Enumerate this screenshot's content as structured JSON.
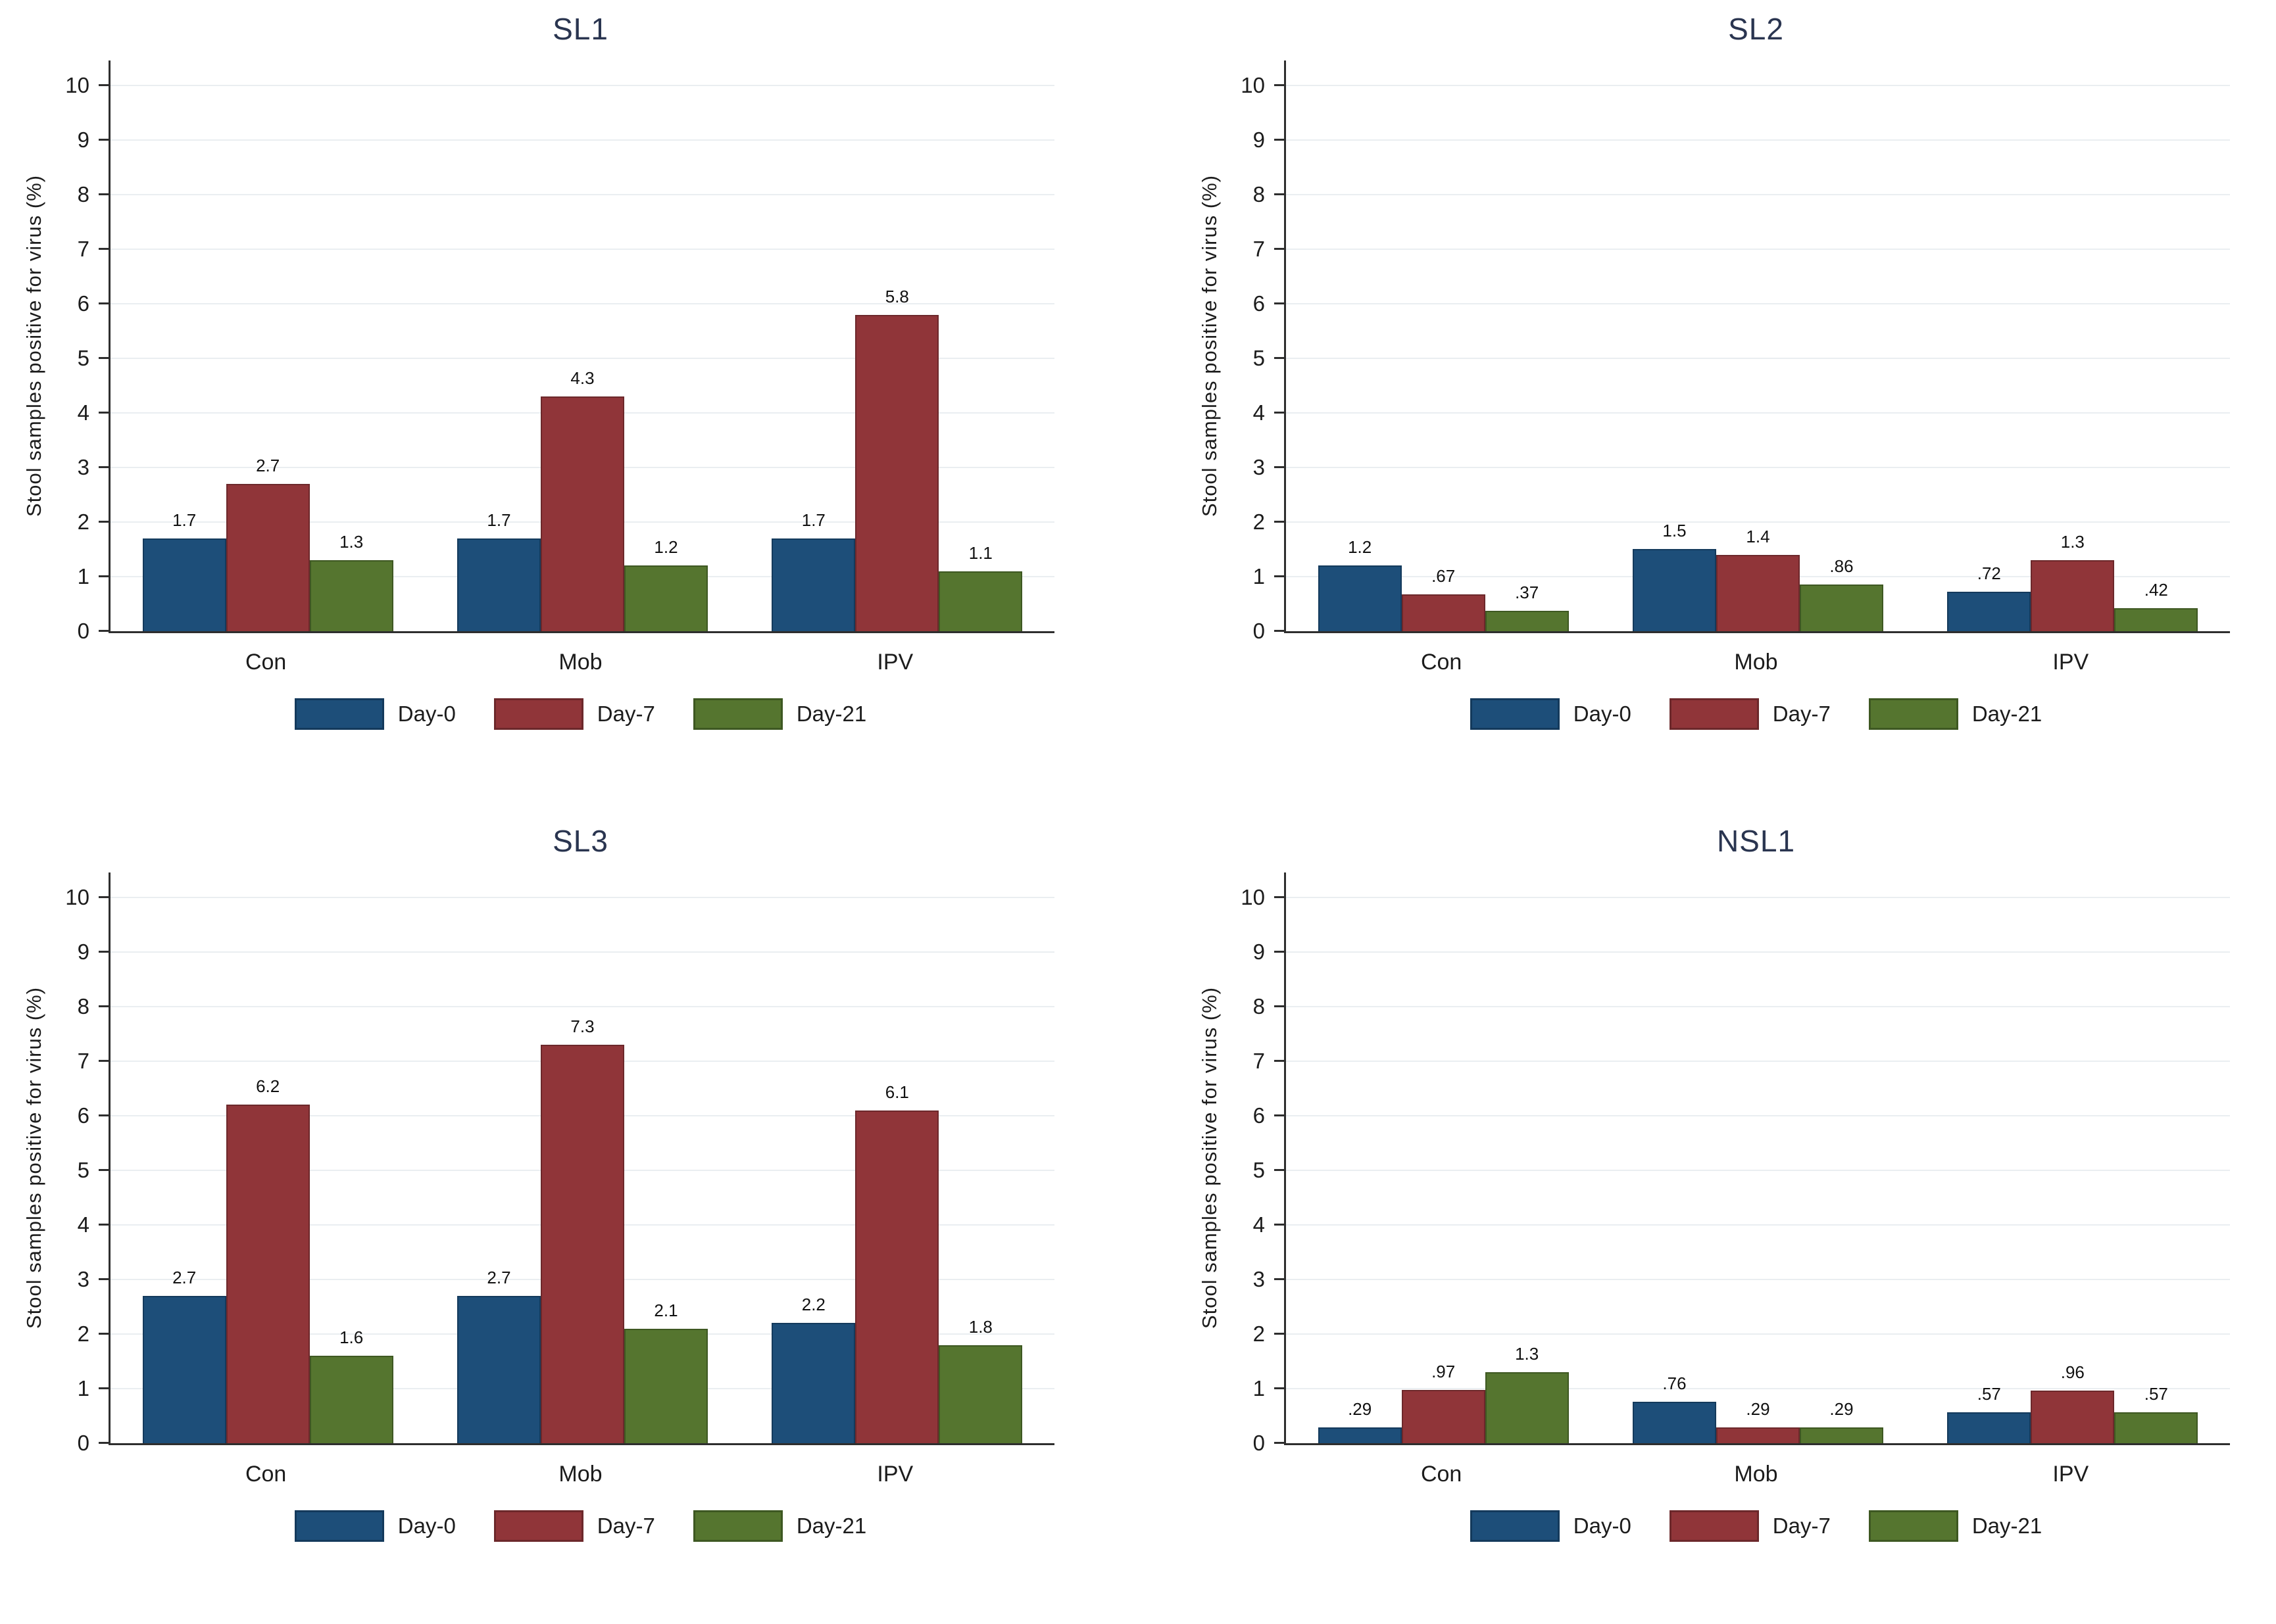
{
  "figure": {
    "background": "#ffffff",
    "title_color": "#2a3550",
    "axis_line_color": "#2e2e2e",
    "gridline_color": "#eaeef1",
    "text_color": "#1c1c1c"
  },
  "axis": {
    "ylabel": "Stool samples positive for virus (%)",
    "yticks": [
      "0",
      "1",
      "2",
      "3",
      "4",
      "5",
      "6",
      "7",
      "8",
      "9",
      "10"
    ],
    "categories": [
      "Con",
      "Mob",
      "IPV"
    ]
  },
  "legend": {
    "items": [
      {
        "label": "Day-0",
        "color": "#1d4e79",
        "border": "#143a5c"
      },
      {
        "label": "Day-7",
        "color": "#903539",
        "border": "#6c282b"
      },
      {
        "label": "Day-21",
        "color": "#55752f",
        "border": "#3e5822"
      }
    ]
  },
  "chart_data": [
    {
      "type": "bar",
      "title": "SL1",
      "categories": [
        "Con",
        "Mob",
        "IPV"
      ],
      "xlabel": "",
      "ylabel": "Stool samples positive for virus (%)",
      "ylim": [
        0,
        10
      ],
      "grid": true,
      "legend_position": "bottom",
      "series": [
        {
          "name": "Day-0",
          "values": [
            1.7,
            1.7,
            1.7
          ],
          "labels": [
            "1.7",
            "1.7",
            "1.7"
          ]
        },
        {
          "name": "Day-7",
          "values": [
            2.7,
            4.3,
            5.8
          ],
          "labels": [
            "2.7",
            "4.3",
            "5.8"
          ]
        },
        {
          "name": "Day-21",
          "values": [
            1.3,
            1.2,
            1.1
          ],
          "labels": [
            "1.3",
            "1.2",
            "1.1"
          ]
        }
      ]
    },
    {
      "type": "bar",
      "title": "SL2",
      "categories": [
        "Con",
        "Mob",
        "IPV"
      ],
      "xlabel": "",
      "ylabel": "Stool samples positive for virus (%)",
      "ylim": [
        0,
        10
      ],
      "grid": true,
      "legend_position": "bottom",
      "series": [
        {
          "name": "Day-0",
          "values": [
            1.2,
            1.5,
            0.72
          ],
          "labels": [
            "1.2",
            "1.5",
            ".72"
          ]
        },
        {
          "name": "Day-7",
          "values": [
            0.67,
            1.4,
            1.3
          ],
          "labels": [
            ".67",
            "1.4",
            "1.3"
          ]
        },
        {
          "name": "Day-21",
          "values": [
            0.37,
            0.86,
            0.42
          ],
          "labels": [
            ".37",
            ".86",
            ".42"
          ]
        }
      ]
    },
    {
      "type": "bar",
      "title": "SL3",
      "categories": [
        "Con",
        "Mob",
        "IPV"
      ],
      "xlabel": "",
      "ylabel": "Stool samples positive for virus (%)",
      "ylim": [
        0,
        10
      ],
      "grid": true,
      "legend_position": "bottom",
      "series": [
        {
          "name": "Day-0",
          "values": [
            2.7,
            2.7,
            2.2
          ],
          "labels": [
            "2.7",
            "2.7",
            "2.2"
          ]
        },
        {
          "name": "Day-7",
          "values": [
            6.2,
            7.3,
            6.1
          ],
          "labels": [
            "6.2",
            "7.3",
            "6.1"
          ]
        },
        {
          "name": "Day-21",
          "values": [
            1.6,
            2.1,
            1.8
          ],
          "labels": [
            "1.6",
            "2.1",
            "1.8"
          ]
        }
      ]
    },
    {
      "type": "bar",
      "title": "NSL1",
      "categories": [
        "Con",
        "Mob",
        "IPV"
      ],
      "xlabel": "",
      "ylabel": "Stool samples positive for virus (%)",
      "ylim": [
        0,
        10
      ],
      "grid": true,
      "legend_position": "bottom",
      "series": [
        {
          "name": "Day-0",
          "values": [
            0.29,
            0.76,
            0.57
          ],
          "labels": [
            ".29",
            ".76",
            ".57"
          ]
        },
        {
          "name": "Day-7",
          "values": [
            0.97,
            0.29,
            0.96
          ],
          "labels": [
            ".97",
            ".29",
            ".96"
          ]
        },
        {
          "name": "Day-21",
          "values": [
            1.3,
            0.29,
            0.57
          ],
          "labels": [
            "1.3",
            ".29",
            ".57"
          ]
        }
      ]
    }
  ]
}
